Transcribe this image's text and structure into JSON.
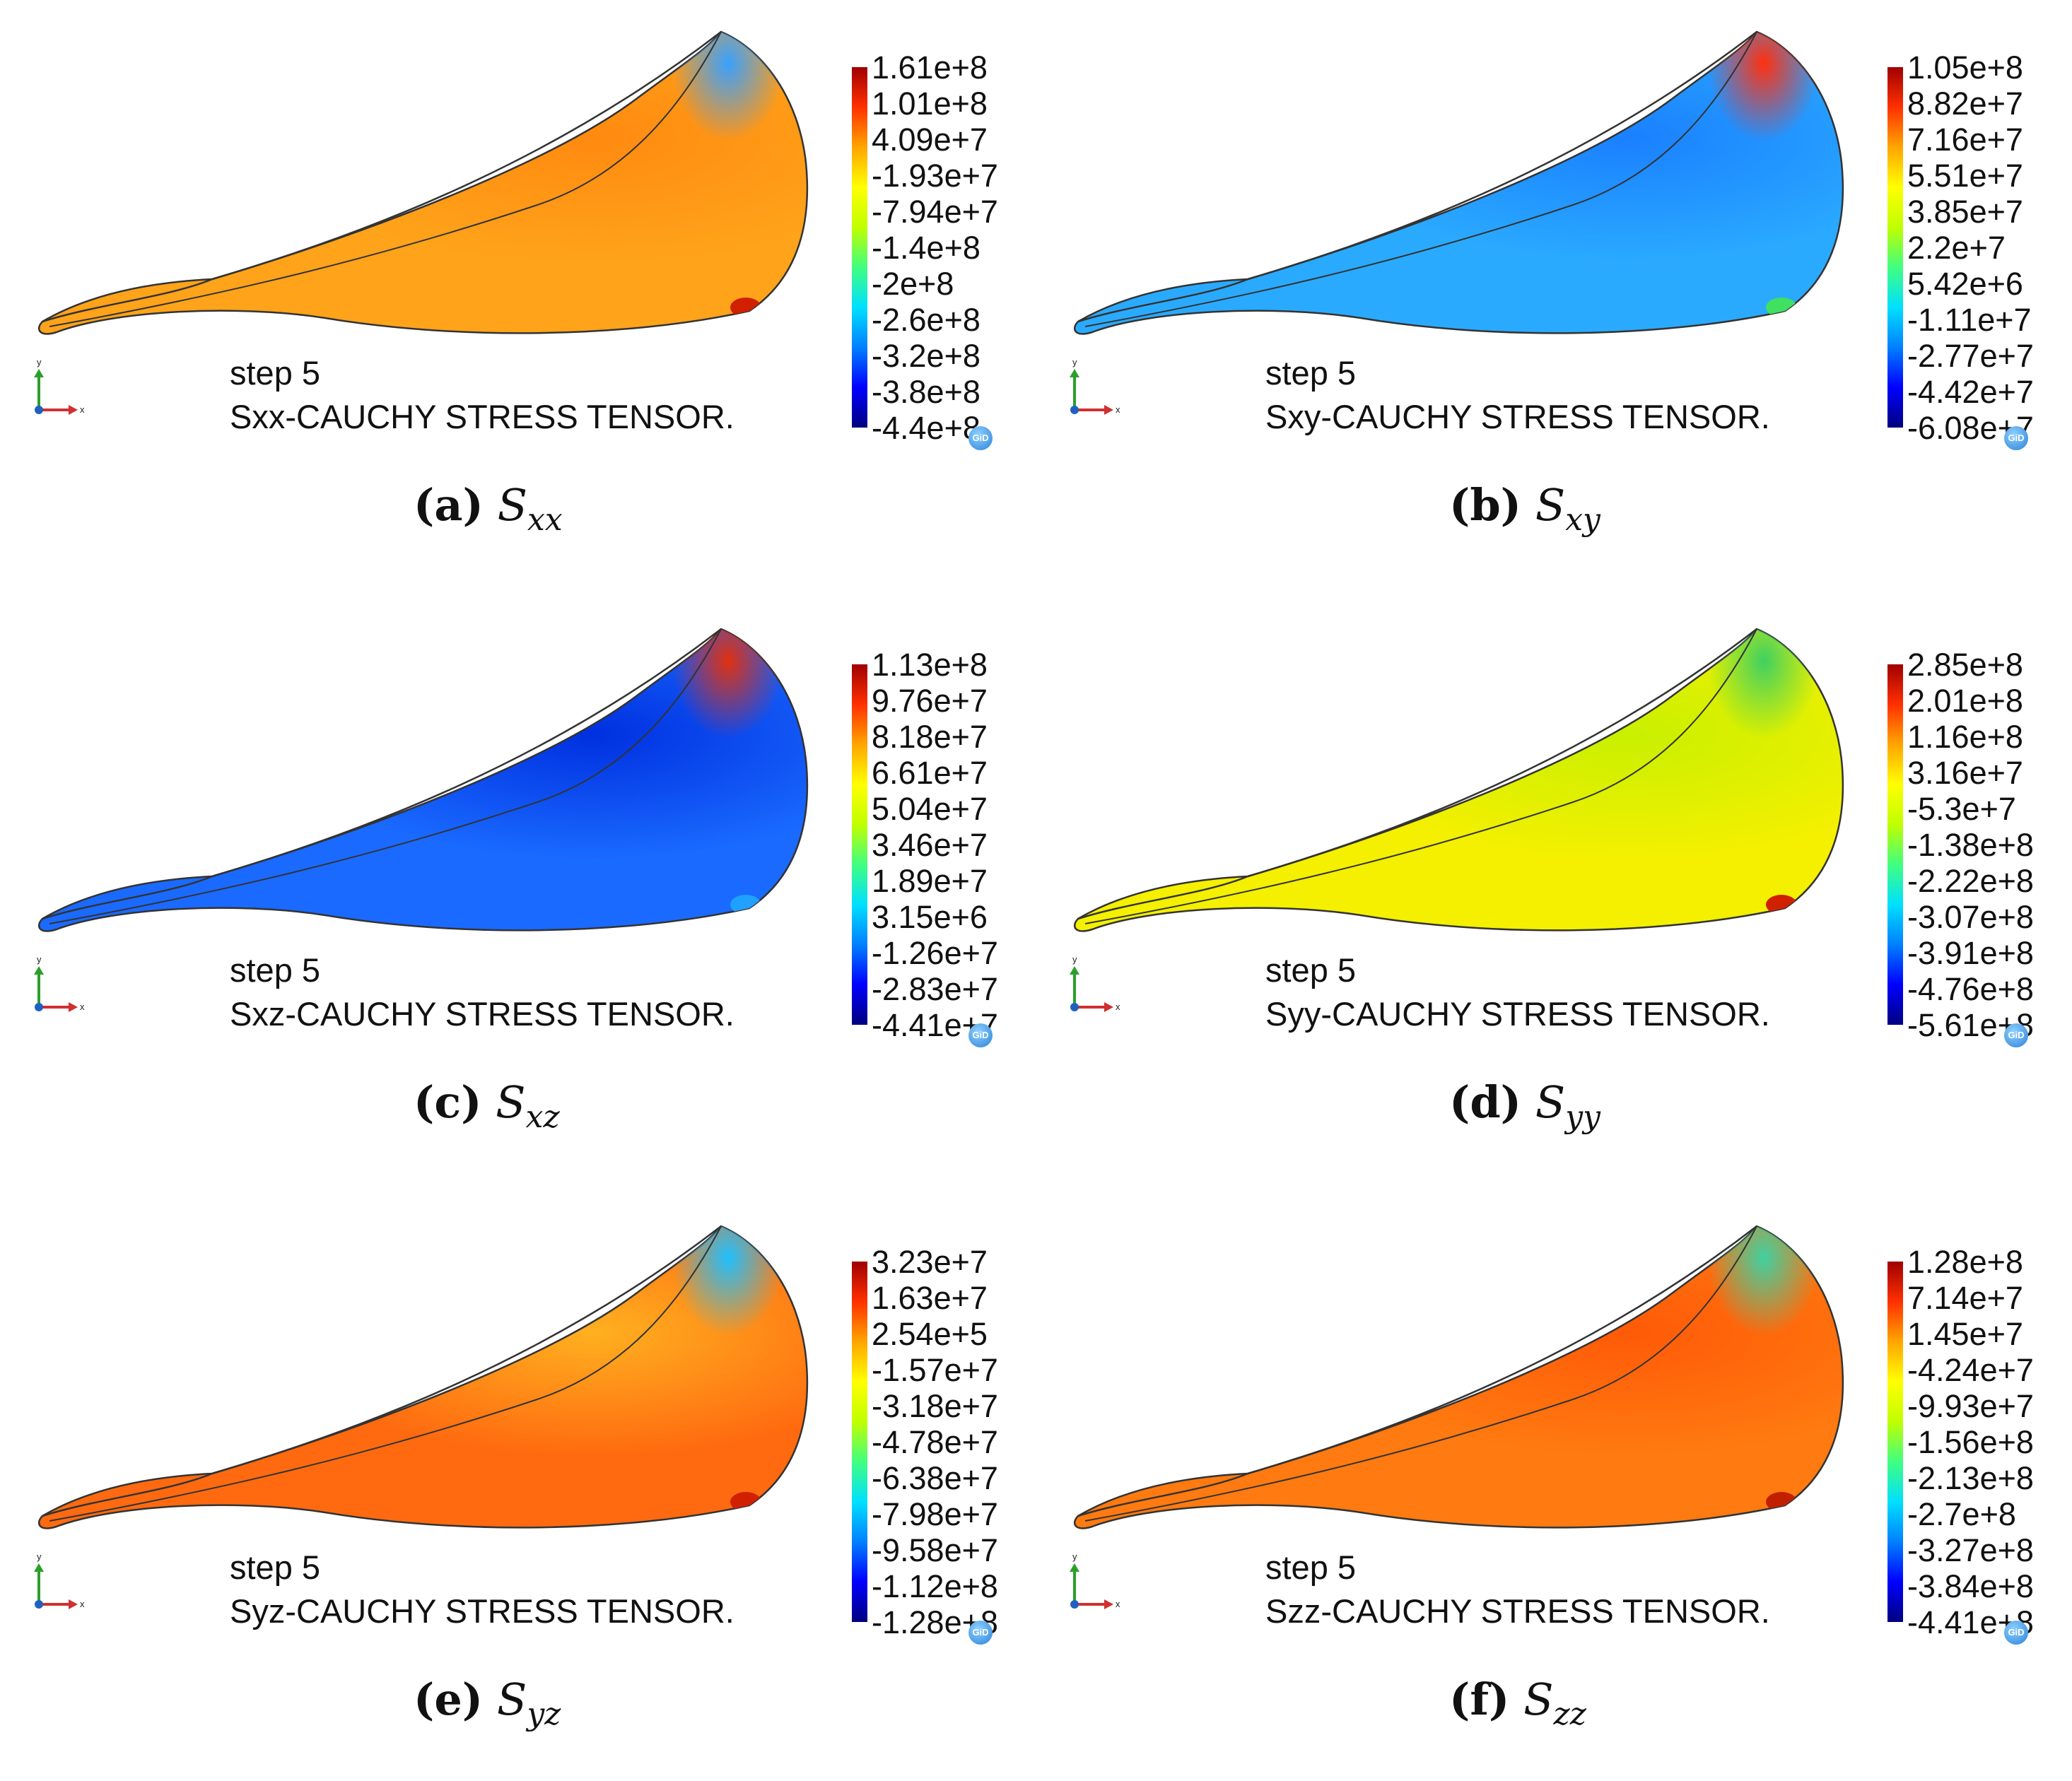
{
  "figure": {
    "step_label": "step 5",
    "colormap": [
      "#00007f",
      "#0000ff",
      "#0080ff",
      "#00e0ff",
      "#40ff80",
      "#c0ff00",
      "#ffff00",
      "#ffa500",
      "#ff3000",
      "#a00000"
    ],
    "outline_color": "#333333",
    "axis_triad": {
      "y_label": "y",
      "x_label": "x",
      "y_color": "#2aa02a",
      "x_color": "#d03030",
      "origin_color": "#2060c0"
    }
  },
  "panels": [
    {
      "id": "a",
      "caption_label": "(a)",
      "caption_symbol": "S",
      "caption_subscript": "xx",
      "result_label": "Sxx-CAUCHY STRESS TENSOR.",
      "scale": [
        "1.61e+8",
        "1.01e+8",
        "4.09e+7",
        "-1.93e+7",
        "-7.94e+7",
        "-1.4e+8",
        "-2e+8",
        "-2.6e+8",
        "-3.2e+8",
        "-3.8e+8",
        "-4.4e+8"
      ],
      "fill": {
        "base": "#ffa31a",
        "patch": "#ff8a10",
        "tip": "#3aa0ff",
        "corner": "#d02000"
      }
    },
    {
      "id": "b",
      "caption_label": "(b)",
      "caption_symbol": "S",
      "caption_subscript": "xy",
      "result_label": "Sxy-CAUCHY STRESS TENSOR.",
      "scale": [
        "1.05e+8",
        "8.82e+7",
        "7.16e+7",
        "5.51e+7",
        "3.85e+7",
        "2.2e+7",
        "5.42e+6",
        "-1.11e+7",
        "-2.77e+7",
        "-4.42e+7",
        "-6.08e+7"
      ],
      "fill": {
        "base": "#2aaaff",
        "patch": "#1a80ff",
        "tip": "#ff3010",
        "corner": "#40e060"
      }
    },
    {
      "id": "c",
      "caption_label": "(c)",
      "caption_symbol": "S",
      "caption_subscript": "xz",
      "result_label": "Sxz-CAUCHY STRESS TENSOR.",
      "scale": [
        "1.13e+8",
        "9.76e+7",
        "8.18e+7",
        "6.61e+7",
        "5.04e+7",
        "3.46e+7",
        "1.89e+7",
        "3.15e+6",
        "-1.26e+7",
        "-2.83e+7",
        "-4.41e+7"
      ],
      "fill": {
        "base": "#1a6aff",
        "patch": "#0030e0",
        "tip": "#e03010",
        "corner": "#20a0ff"
      }
    },
    {
      "id": "d",
      "caption_label": "(d)",
      "caption_symbol": "S",
      "caption_subscript": "yy",
      "result_label": "Syy-CAUCHY STRESS TENSOR.",
      "scale": [
        "2.85e+8",
        "2.01e+8",
        "1.16e+8",
        "3.16e+7",
        "-5.3e+7",
        "-1.38e+8",
        "-2.22e+8",
        "-3.07e+8",
        "-3.91e+8",
        "-4.76e+8",
        "-5.61e+8"
      ],
      "fill": {
        "base": "#f4f000",
        "patch": "#c8f000",
        "tip": "#40d060",
        "corner": "#d02000"
      }
    },
    {
      "id": "e",
      "caption_label": "(e)",
      "caption_symbol": "S",
      "caption_subscript": "yz",
      "result_label": "Syz-CAUCHY STRESS TENSOR.",
      "scale": [
        "3.23e+7",
        "1.63e+7",
        "2.54e+5",
        "-1.57e+7",
        "-3.18e+7",
        "-4.78e+7",
        "-6.38e+7",
        "-7.98e+7",
        "-9.58e+7",
        "-1.12e+8",
        "-1.28e+8"
      ],
      "fill": {
        "base": "#ff6a10",
        "patch": "#ffb020",
        "tip": "#20c0ff",
        "corner": "#d02000"
      }
    },
    {
      "id": "f",
      "caption_label": "(f)",
      "caption_symbol": "S",
      "caption_subscript": "zz",
      "result_label": "Szz-CAUCHY STRESS TENSOR.",
      "scale": [
        "1.28e+8",
        "7.14e+7",
        "1.45e+7",
        "-4.24e+7",
        "-9.93e+7",
        "-1.56e+8",
        "-2.13e+8",
        "-2.7e+8",
        "-3.27e+8",
        "-3.84e+8",
        "-4.41e+8"
      ],
      "fill": {
        "base": "#ff7a10",
        "patch": "#ff5a08",
        "tip": "#40d0a0",
        "corner": "#c02000"
      }
    }
  ]
}
